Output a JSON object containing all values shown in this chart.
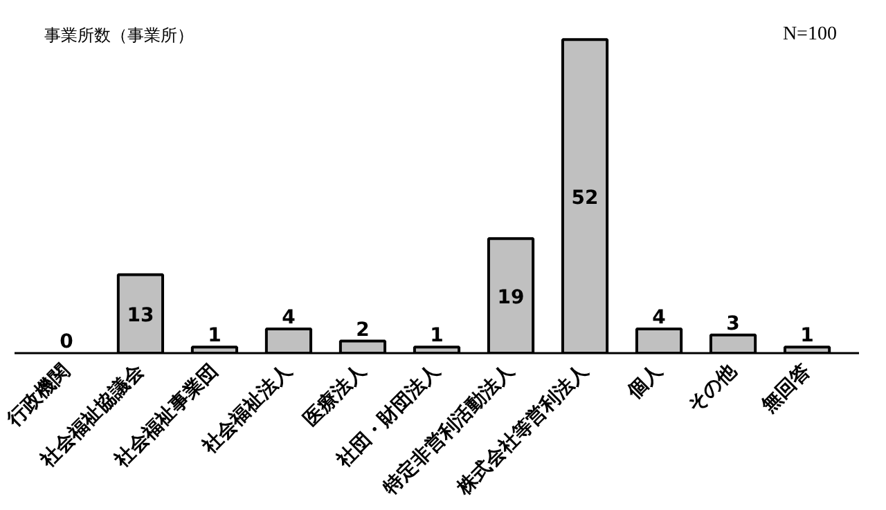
{
  "chart_data": {
    "type": "bar",
    "title": "事業所数（事業所）",
    "categories": [
      "行政機関",
      "社会福祉協議会",
      "社会福祉事業団",
      "社会福祉法人",
      "医療法人",
      "社団・財団法人",
      "特定非営利活動法人",
      "株式会社等営利法人",
      "個人",
      "その他",
      "無回答"
    ],
    "values": [
      0,
      13,
      1,
      4,
      2,
      1,
      19,
      52,
      4,
      3,
      1
    ],
    "color": "#c0c0c0",
    "data_labels": true,
    "annotations": [
      "N=100"
    ]
  }
}
